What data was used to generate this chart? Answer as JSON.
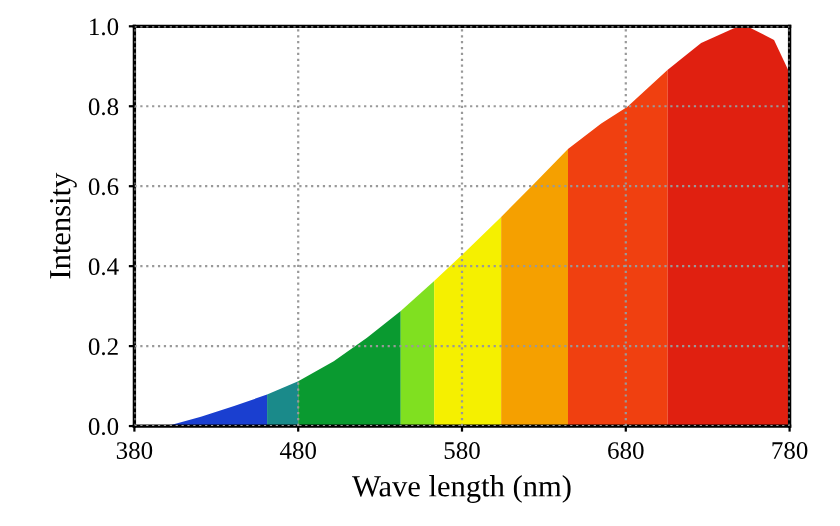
{
  "chart_data": {
    "type": "area",
    "xlabel": "Wave length (nm)",
    "ylabel": "Intensity",
    "xlim": [
      380,
      780
    ],
    "xticks": [
      380,
      480,
      580,
      680,
      780
    ],
    "ylim": [
      0,
      1
    ],
    "yticks": [
      {
        "value": 0,
        "label": "0.0"
      },
      {
        "value": 0.2,
        "label": "0.2"
      },
      {
        "value": 0.4,
        "label": "0.4"
      },
      {
        "value": 0.6,
        "label": "0.6"
      },
      {
        "value": 0.8,
        "label": "0.8"
      },
      {
        "value": 1,
        "label": "1.0"
      }
    ],
    "grid": true,
    "series": [
      {
        "color": "#1a3fd0",
        "x": [
          400,
          420.6,
          440.9,
          461
        ],
        "values": [
          0,
          0.023,
          0.05,
          0.079
        ]
      },
      {
        "color": "#1a8a8a",
        "x": [
          461,
          480
        ],
        "values": [
          0.079,
          0.112
        ]
      },
      {
        "color": "#0a9a30",
        "x": [
          480,
          501.7,
          522,
          542.6
        ],
        "values": [
          0.112,
          0.162,
          0.221,
          0.288
        ]
      },
      {
        "color": "#80e020",
        "x": [
          542.6,
          563
        ],
        "values": [
          0.288,
          0.363
        ]
      },
      {
        "color": "#f5f000",
        "x": [
          563,
          583.6,
          603.9
        ],
        "values": [
          0.363,
          0.442,
          0.523
        ]
      },
      {
        "color": "#f5a000",
        "x": [
          603.9,
          624,
          644.7
        ],
        "values": [
          0.523,
          0.606,
          0.693
        ]
      },
      {
        "color": "#f04010",
        "x": [
          644.7,
          665,
          681,
          705.6
        ],
        "values": [
          0.693,
          0.757,
          0.799,
          0.891
        ]
      },
      {
        "color": "#e02010",
        "x": [
          705.6,
          726,
          746,
          754,
          770.5,
          780
        ],
        "values": [
          0.891,
          0.958,
          0.995,
          1.0,
          0.966,
          0.883
        ]
      }
    ]
  }
}
